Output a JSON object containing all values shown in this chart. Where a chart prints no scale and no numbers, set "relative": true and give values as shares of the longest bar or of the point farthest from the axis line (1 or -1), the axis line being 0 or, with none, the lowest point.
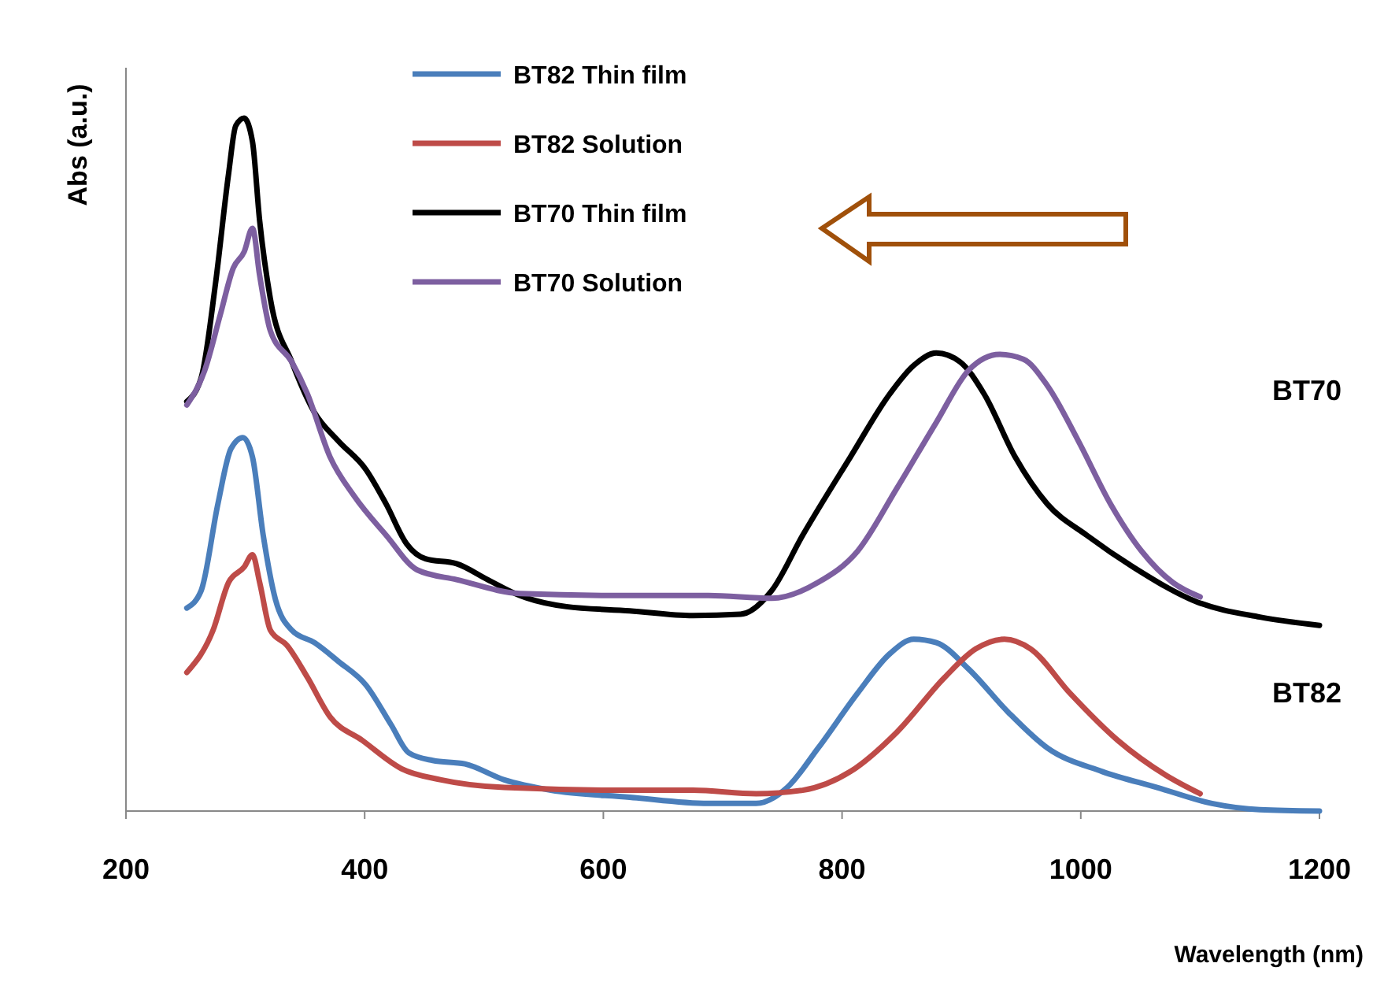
{
  "chart_data": {
    "type": "line",
    "xlabel": "Wavelength (nm)",
    "ylabel": "Abs (a.u.)",
    "relative": true,
    "xlim": [
      200,
      1200
    ],
    "xticks": [
      200,
      400,
      600,
      800,
      1000,
      1200
    ],
    "legend": "top left",
    "grid": false,
    "series": [
      {
        "name": "BT82 Thin film",
        "color": "#4a7ebb",
        "x": [
          251,
          263,
          277,
          288,
          298,
          306,
          315,
          325,
          339,
          358,
          378,
          401,
          422,
          437,
          457,
          484,
          517,
          556,
          622,
          688,
          728,
          754,
          780,
          813,
          840,
          860,
          879,
          906,
          939,
          972,
          1018,
          1064,
          1110,
          1150,
          1200
        ],
        "values": [
          0.293,
          0.318,
          0.443,
          0.523,
          0.539,
          0.511,
          0.398,
          0.307,
          0.261,
          0.243,
          0.216,
          0.182,
          0.125,
          0.084,
          0.073,
          0.068,
          0.045,
          0.03,
          0.02,
          0.011,
          0.011,
          0.034,
          0.091,
          0.17,
          0.227,
          0.248,
          0.243,
          0.205,
          0.143,
          0.091,
          0.057,
          0.034,
          0.011,
          0.002,
          0
        ]
      },
      {
        "name": "BT82 Solution",
        "color": "#be4b48",
        "x": [
          251,
          273,
          286,
          299,
          306,
          312,
          321,
          335,
          352,
          371,
          398,
          431,
          464,
          517,
          622,
          675,
          728,
          767,
          807,
          846,
          886,
          912,
          936,
          958,
          991,
          1031,
          1071,
          1100
        ],
        "values": [
          0.2,
          0.261,
          0.33,
          0.352,
          0.37,
          0.33,
          0.261,
          0.239,
          0.193,
          0.136,
          0.102,
          0.061,
          0.045,
          0.034,
          0.03,
          0.03,
          0.025,
          0.03,
          0.057,
          0.114,
          0.193,
          0.234,
          0.248,
          0.234,
          0.17,
          0.102,
          0.052,
          0.025
        ]
      },
      {
        "name": "BT70 Thin film",
        "color": "#000000",
        "x": [
          251,
          263,
          275,
          286,
          292,
          299,
          306,
          312,
          321,
          339,
          358,
          378,
          401,
          418,
          435,
          451,
          477,
          503,
          530,
          569,
          622,
          675,
          715,
          741,
          767,
          807,
          840,
          860,
          879,
          899,
          919,
          945,
          972,
          1005,
          1044,
          1097,
          1150,
          1200
        ],
        "values": [
          0.591,
          0.625,
          0.761,
          0.92,
          0.989,
          1,
          0.966,
          0.852,
          0.739,
          0.648,
          0.575,
          0.534,
          0.493,
          0.443,
          0.386,
          0.364,
          0.357,
          0.334,
          0.311,
          0.295,
          0.289,
          0.282,
          0.284,
          0.318,
          0.398,
          0.511,
          0.602,
          0.643,
          0.661,
          0.648,
          0.602,
          0.511,
          0.443,
          0.398,
          0.352,
          0.302,
          0.28,
          0.268
        ]
      },
      {
        "name": "BT70 Solution",
        "color": "#7d5fa0",
        "x": [
          251,
          266,
          279,
          290,
          299,
          306,
          312,
          321,
          339,
          352,
          371,
          391,
          418,
          444,
          477,
          530,
          622,
          688,
          741,
          780,
          813,
          846,
          879,
          906,
          932,
          952,
          972,
          998,
          1025,
          1051,
          1077,
          1100
        ],
        "values": [
          0.586,
          0.636,
          0.716,
          0.784,
          0.807,
          0.841,
          0.773,
          0.693,
          0.648,
          0.602,
          0.511,
          0.455,
          0.398,
          0.348,
          0.334,
          0.314,
          0.311,
          0.311,
          0.307,
          0.33,
          0.375,
          0.466,
          0.561,
          0.636,
          0.659,
          0.652,
          0.614,
          0.534,
          0.443,
          0.375,
          0.33,
          0.309
        ]
      }
    ],
    "annotations": [
      "BT70",
      "BT82"
    ]
  }
}
